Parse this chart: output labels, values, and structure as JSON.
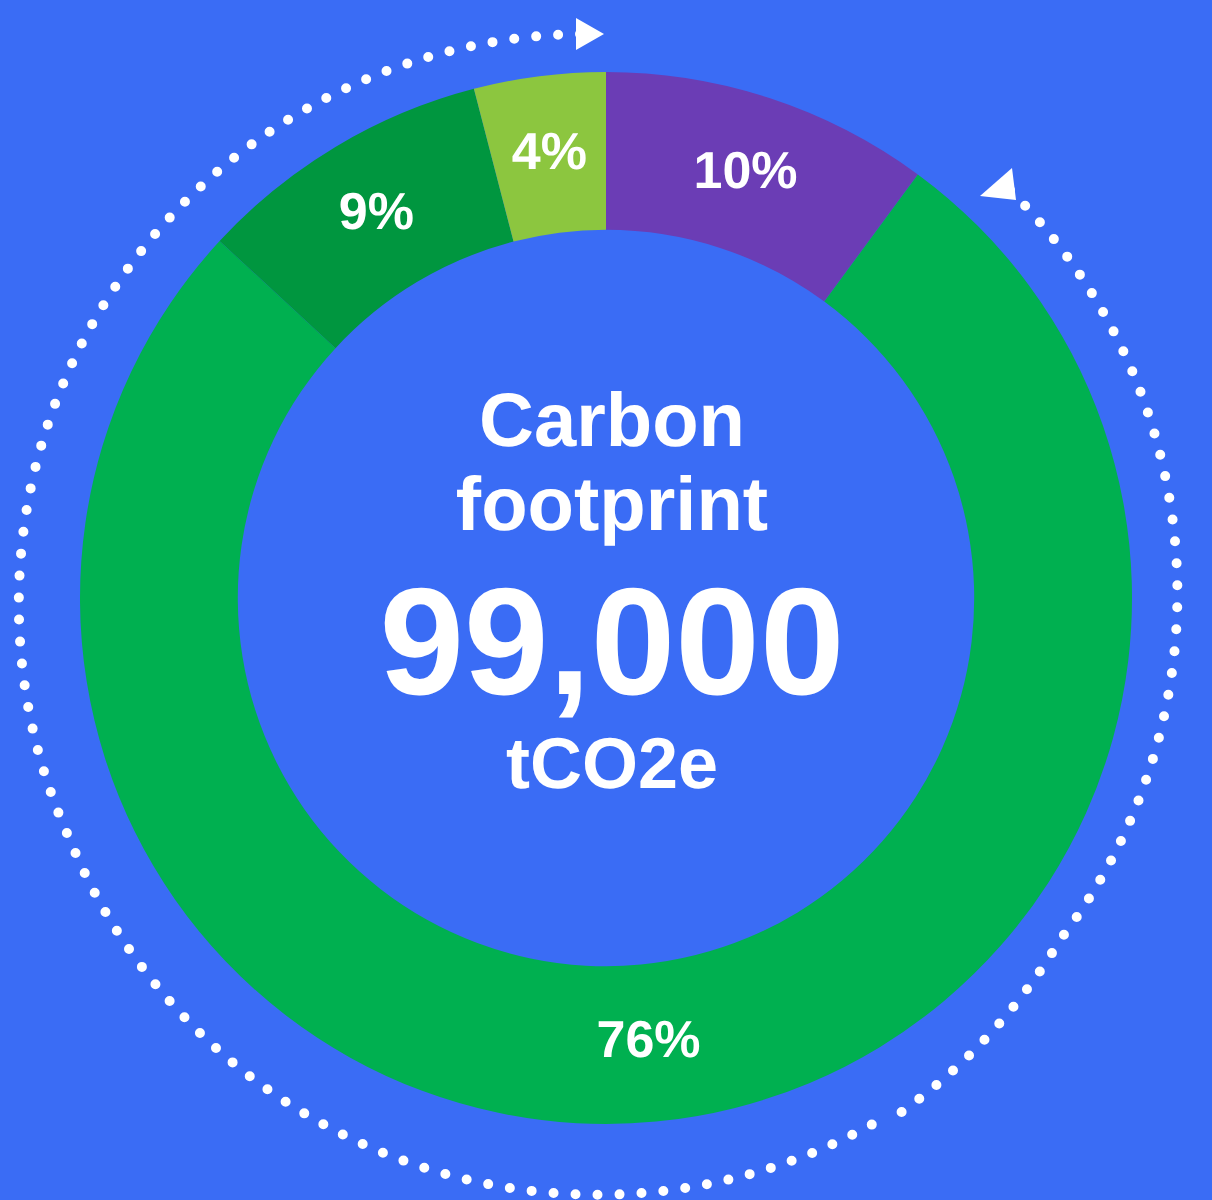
{
  "chart_data": {
    "type": "donut",
    "title": "Carbon footprint",
    "annotations": [
      "99,000",
      "tCO2e"
    ],
    "categories": [
      null,
      null,
      null,
      null
    ],
    "values": [
      10,
      76,
      9,
      4
    ],
    "value_labels": [
      "10%",
      "76%",
      "9%",
      "4%"
    ],
    "colors": [
      "#6b3db5",
      "#00b050",
      "#00963f",
      "#8cc63f"
    ],
    "legend": false
  }
}
